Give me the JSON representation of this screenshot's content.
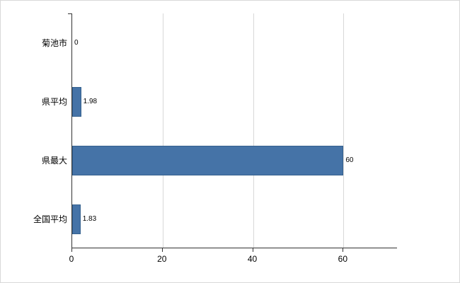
{
  "chart_data": {
    "type": "bar",
    "orientation": "horizontal",
    "title": "",
    "xlabel": "",
    "ylabel": "",
    "categories": [
      "菊池市",
      "県平均",
      "県最大",
      "全国平均"
    ],
    "values": [
      0,
      1.98,
      60,
      1.83
    ],
    "value_labels": [
      "0",
      "1.98",
      "60",
      "1.83"
    ],
    "xlim": [
      0,
      72
    ],
    "xticks": [
      0,
      20,
      40,
      60
    ],
    "grid": "vertical-only",
    "legend": "none",
    "bar_color": "#4573a7",
    "bar_border_color": "#35618e"
  }
}
